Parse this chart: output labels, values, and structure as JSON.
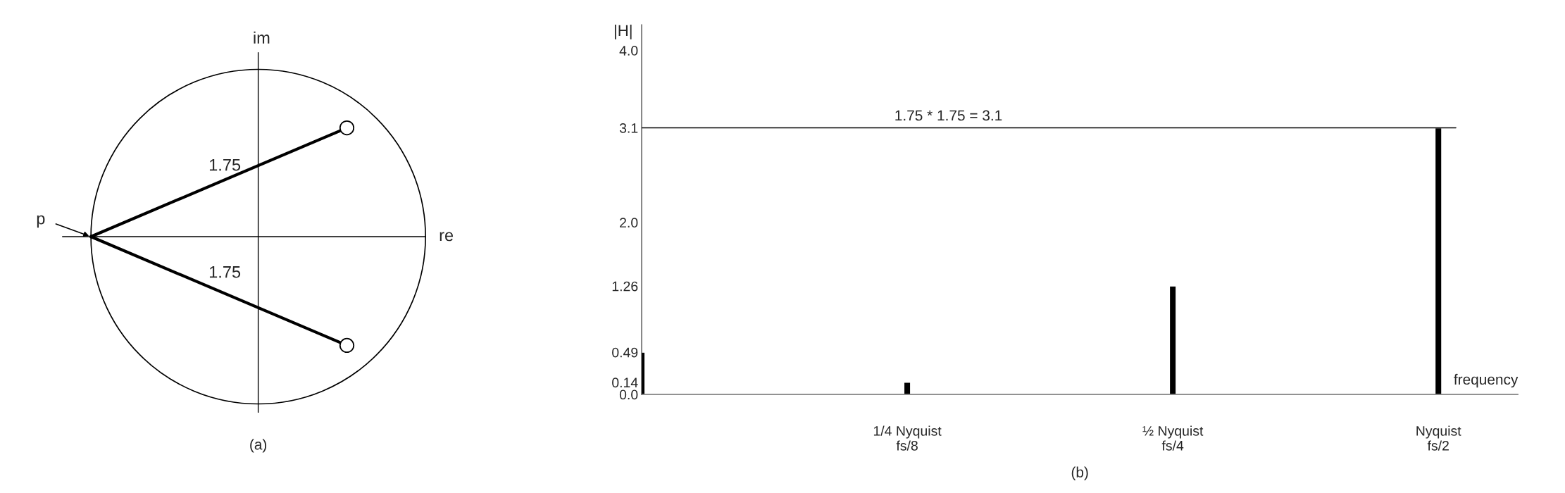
{
  "chart_data": [
    {
      "type": "other",
      "title": "(a)",
      "annotations": [
        "im",
        "re",
        "p",
        "1.75",
        "1.75"
      ]
    },
    {
      "type": "bar",
      "title": "(b)",
      "xlabel": "frequency",
      "ylabel": "|H|",
      "categories": [
        null,
        "1/4 Nyquist\nfs/8",
        "½ Nyquist\nfs/4",
        "Nyquist\nfs/2"
      ],
      "values": [
        0.49,
        0.14,
        1.26,
        3.1
      ],
      "color": "#000000",
      "ylim": [
        0,
        4.3
      ],
      "yticks": [
        {
          "value": 0,
          "label": "0.0"
        },
        0.14,
        0.49,
        1.26,
        {
          "value": 2,
          "label": "2.0"
        },
        3.1,
        {
          "value": 4,
          "label": "4.0"
        }
      ],
      "ref_lines": [
        {
          "axis": "y",
          "value": 3.1,
          "label": "1.75 * 1.75 = 3.1",
          "color": "#000000"
        }
      ],
      "grid": false
    }
  ]
}
